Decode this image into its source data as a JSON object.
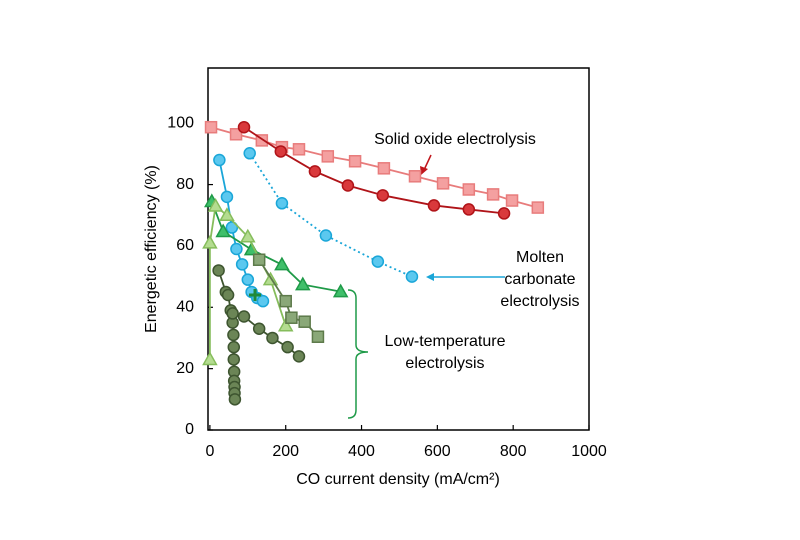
{
  "chart_data": {
    "type": "scatter",
    "xlabel": "CO current density (mA/cm²)",
    "ylabel": "Energetic efficiency (%)",
    "xlim": [
      -5,
      1000
    ],
    "ylim": [
      0,
      118
    ],
    "xticks": [
      0,
      200,
      400,
      600,
      800,
      1000
    ],
    "yticks": [
      0,
      20,
      40,
      60,
      80,
      100
    ],
    "series": [
      {
        "color": "#f4a0a0",
        "line_color": "#e87c7c",
        "marker": "square",
        "line": "solid",
        "x": [
          3,
          69,
          137,
          190,
          235,
          311,
          383,
          459,
          541,
          615,
          683,
          747,
          797,
          865
        ],
        "values": [
          98.7,
          96.4,
          94.4,
          92.2,
          91.5,
          89.2,
          87.6,
          85.3,
          82.7,
          80.4,
          78.4,
          76.8,
          74.8,
          72.5
        ]
      },
      {
        "color": "#d9393c",
        "line_color": "#b01419",
        "marker": "circle",
        "line": "solid",
        "x": [
          90,
          187,
          277,
          364,
          456,
          591,
          683,
          776
        ],
        "values": [
          98.7,
          90.8,
          84.3,
          79.7,
          76.5,
          73.2,
          71.9,
          70.6
        ]
      },
      {
        "color": "#5bc8ef",
        "line_color": "#1aa6d8",
        "marker": "circle",
        "line": "solid",
        "x": [
          25,
          45,
          58,
          70,
          85,
          100,
          110,
          125,
          140
        ],
        "values": [
          88,
          76,
          66,
          59,
          54,
          49,
          45,
          43,
          42
        ]
      },
      {
        "color": "#5bc8ef",
        "line_color": "#1aa6d8",
        "marker": "circle",
        "line": "dotted",
        "x": [
          105,
          190,
          306,
          443,
          533
        ],
        "values": [
          90.2,
          73.9,
          63.4,
          54.9,
          50.0
        ]
      },
      {
        "color": "#3fbf6a",
        "line_color": "#1f9a48",
        "marker": "triangle",
        "line": "solid",
        "x": [
          5,
          35,
          110,
          190,
          245,
          345
        ],
        "values": [
          74.5,
          64.7,
          58.8,
          53.9,
          47.4,
          45.1
        ]
      },
      {
        "color": "#b4dc90",
        "line_color": "#86bd5c",
        "marker": "triangle",
        "line": "solid",
        "x": [
          0,
          0,
          15,
          45,
          100,
          160,
          200
        ],
        "values": [
          23,
          61,
          73,
          70,
          63,
          49,
          34
        ]
      },
      {
        "color": "#8aa878",
        "line_color": "#5d7a4a",
        "marker": "square",
        "line": "solid",
        "x": [
          130,
          200,
          215,
          250,
          285
        ],
        "values": [
          55.5,
          42,
          36.6,
          35.3,
          30.4
        ]
      },
      {
        "color": "#6b8556",
        "line_color": "#3e5530",
        "marker": "circle",
        "line": "solid",
        "x": [
          23,
          42,
          48,
          55,
          60,
          62,
          63,
          63,
          64,
          64,
          65,
          65,
          66
        ],
        "values": [
          52,
          45,
          44,
          39,
          35,
          31,
          27,
          23,
          19,
          16,
          14,
          12,
          10
        ]
      },
      {
        "color": "#6b8556",
        "line_color": "#3e5530",
        "marker": "circle",
        "line": "solid",
        "x": [
          60,
          90,
          130,
          165,
          205,
          235
        ],
        "values": [
          38,
          37,
          33,
          30,
          27,
          24
        ]
      },
      {
        "color": "#1f8a3a",
        "line_color": "#1f8a3a",
        "marker": "plus",
        "line": "none",
        "x": [
          119
        ],
        "values": [
          44
        ]
      }
    ],
    "annotations": [
      {
        "text": [
          "Solid oxide electrolysis"
        ],
        "color": "#c0151b"
      },
      {
        "text": [
          "Molten",
          "carbonate",
          "electrolysis"
        ],
        "color": "#1aa6d8"
      },
      {
        "text": [
          "Low-temperature",
          "electrolysis"
        ],
        "color": "#1f9a48"
      }
    ]
  }
}
